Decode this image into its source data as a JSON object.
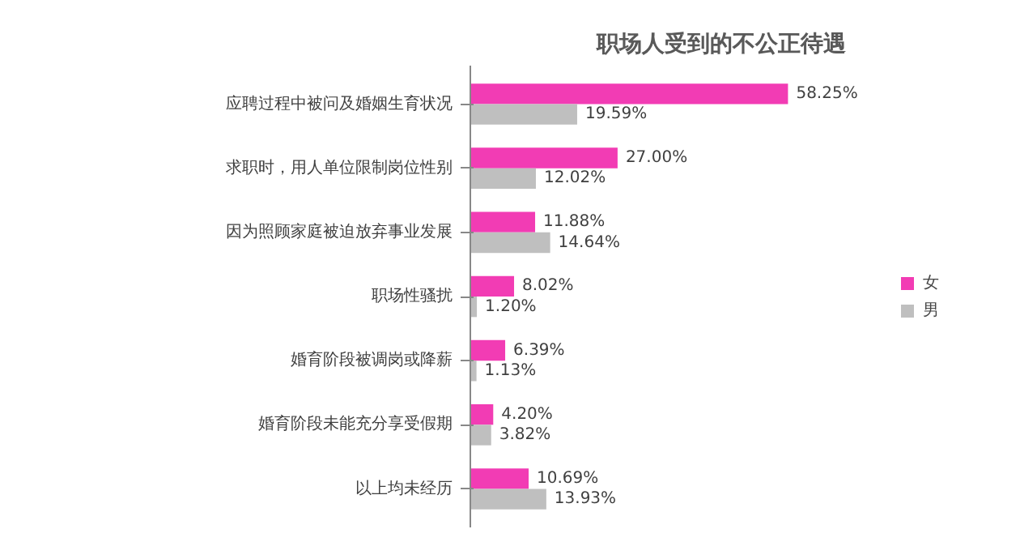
{
  "chart_data": {
    "type": "bar",
    "orientation": "horizontal",
    "title": "职场人受到的不公正待遇",
    "categories": [
      "应聘过程中被问及婚姻生育状况",
      "求职时，用人单位限制岗位性别",
      "因为照顾家庭被迫放弃事业发展",
      "职场性骚扰",
      "婚育阶段被调岗或降薪",
      "婚育阶段未能充分享受假期",
      "以上均未经历"
    ],
    "series": [
      {
        "name": "女",
        "color": "#f23cb4",
        "values": [
          58.25,
          27.0,
          11.88,
          8.02,
          6.39,
          4.2,
          10.69
        ],
        "value_labels": [
          "58.25%",
          "27.00%",
          "11.88%",
          "8.02%",
          "6.39%",
          "4.20%",
          "10.69%"
        ]
      },
      {
        "name": "男",
        "color": "#bfbfbf",
        "values": [
          19.59,
          12.02,
          14.64,
          1.2,
          1.13,
          3.82,
          13.93
        ],
        "value_labels": [
          "19.59%",
          "12.02%",
          "14.64%",
          "1.20%",
          "1.13%",
          "3.82%",
          "13.93%"
        ]
      }
    ],
    "tick_labels": "y",
    "legend": "right",
    "grid": false
  }
}
